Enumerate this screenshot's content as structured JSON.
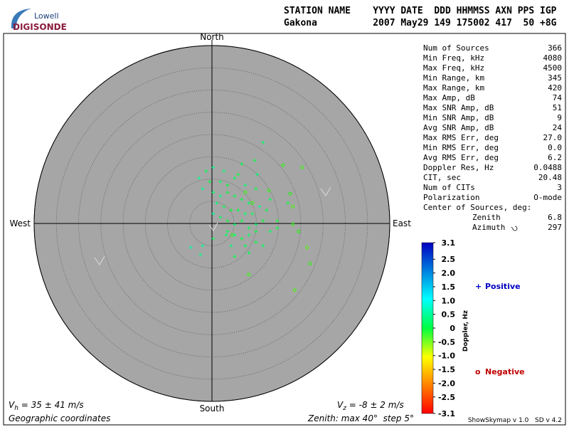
{
  "chart_data": {
    "type": "skymap",
    "logo": {
      "top": "Lowell",
      "bottom": "DIGISONDE"
    },
    "header": {
      "labels": "STATION NAME    YYYY DATE  DDD HHMMSS AXN PPS IGP",
      "values": "Gakona          2007 May29 149 175002 417  50 +8G"
    },
    "directions": {
      "north": "North",
      "south": "South",
      "east": "East",
      "west": "West"
    },
    "rlim": [
      0,
      40
    ],
    "rticks": [
      5,
      10,
      15,
      20,
      25,
      30,
      35,
      40
    ],
    "xlim": [
      -40,
      40
    ],
    "ylim": [
      -40,
      40
    ],
    "stats": [
      [
        "Num of Sources",
        "366"
      ],
      [
        "Min Freq, kHz",
        "4080"
      ],
      [
        "Max Freq, kHz",
        "4500"
      ],
      [
        "Min Range, km",
        "345"
      ],
      [
        "Max Range, km",
        "420"
      ],
      [
        "Max Amp, dB",
        "74"
      ],
      [
        "Max SNR Amp, dB",
        "51"
      ],
      [
        "Min SNR Amp, dB",
        "9"
      ],
      [
        "Avg SNR Amp, dB",
        "24"
      ],
      [
        "Max RMS Err, deg",
        "27.0"
      ],
      [
        "Min RMS Err, deg",
        "0.0"
      ],
      [
        "Avg RMS Err, deg",
        "6.2"
      ],
      [
        "Doppler Res, Hz",
        "0.0488"
      ],
      [
        "CIT, sec",
        "20.48"
      ],
      [
        "Num of CITs",
        "3"
      ],
      [
        "Polarization",
        "O-mode"
      ]
    ],
    "center": {
      "title": "Center of Sources, deg:",
      "zenith_label": "Zenith",
      "zenith": "6.8",
      "azimuth_label": "Azimuth",
      "azimuth": "297"
    },
    "colorbar": {
      "label": "Doppler, Hz",
      "lim": [
        -3.1,
        3.1
      ],
      "ticks": [
        3.1,
        2.5,
        {
          "value": 2,
          "label": "2.0"
        },
        1.5,
        {
          "value": 1,
          "label": "1.0"
        },
        0.5,
        0,
        -0.5,
        {
          "value": -1,
          "label": "-1.0"
        },
        -1.5,
        {
          "value": -2,
          "label": "-2.0"
        },
        -2.5,
        -3.1
      ]
    },
    "series": [
      {
        "name": "Positive",
        "symbol": "+",
        "color": "#0000c0",
        "x": [
          11.5,
          9.6,
          6.7,
          10.2,
          5.9,
          0.3,
          -1.3,
          -2.9,
          -0.5,
          1.9,
          3.5,
          5.1,
          7.5,
          9.9,
          0.3,
          1.9,
          3.5,
          5.1,
          6.7,
          8.3,
          1.1,
          2.7,
          4.3,
          5.9,
          7.5,
          9.1,
          10.7,
          12.3,
          0.3,
          1.9,
          3.5,
          5.1,
          6.7,
          8.3,
          9.9,
          11.5,
          13.1,
          14.7,
          3.5,
          5.1,
          6.7,
          8.3,
          9.9,
          11.5,
          4.3,
          0.3,
          -2.1,
          -4.8,
          -2.6,
          5.1,
          8.3,
          14.7,
          17.1,
          13.1,
          2.7,
          -2.1,
          7.5,
          9.9,
          3.2
        ],
        "y": [
          18.2,
          14.2,
          13.4,
          11.0,
          11.0,
          12.6,
          11.8,
          10.2,
          9.4,
          9.4,
          8.6,
          10.2,
          8.6,
          7.8,
          7.0,
          6.2,
          7.0,
          6.2,
          5.4,
          4.6,
          4.6,
          3.8,
          3.0,
          3.0,
          2.2,
          2.2,
          3.8,
          3.0,
          2.2,
          1.4,
          0.6,
          -0.2,
          0.6,
          -1.0,
          -0.2,
          0.6,
          -1.8,
          -1.0,
          -1.8,
          -2.6,
          -3.4,
          -2.6,
          -4.2,
          -5.0,
          -5.0,
          -3.4,
          -5.0,
          -5.4,
          -7.0,
          -7.4,
          -6.6,
          0.6,
          4.6,
          5.4,
          11.8,
          7.8,
          -5.0,
          -1.8,
          -2.6
        ],
        "doppler": [
          0.6,
          0.4,
          0.5,
          0.7,
          0.3,
          0.8,
          0.5,
          0.9,
          0.4,
          0.6,
          0.3,
          0.5,
          0.7,
          0.4,
          0.6,
          0.8,
          0.3,
          0.5,
          0.4,
          0.6,
          0.7,
          0.5,
          0.3,
          0.4,
          0.6,
          0.5,
          0.8,
          0.4,
          0.9,
          0.5,
          0.3,
          0.6,
          0.4,
          0.5,
          0.7,
          0.3,
          0.6,
          0.4,
          0.5,
          0.8,
          0.3,
          0.6,
          0.4,
          0.5,
          0.7,
          0.6,
          0.9,
          1.0,
          0.8,
          0.4,
          0.5,
          0.3,
          0.4,
          0.5,
          0.7,
          0.9,
          0.5,
          0.4,
          0.6
        ]
      },
      {
        "name": "Negative",
        "symbol": "o",
        "color": "#c00000",
        "x": [
          16.0,
          20.3,
          17.6,
          18.2,
          12.8,
          7.5,
          21.4,
          22.1,
          18.6,
          8.3,
          19.5,
          18.2,
          9.1,
          4.6
        ],
        "y": [
          13.1,
          12.6,
          6.7,
          3.8,
          7.4,
          7.0,
          -5.4,
          -9.0,
          -15.0,
          -11.5,
          -1.8,
          -0.2,
          4.6,
          -2.6
        ],
        "doppler": [
          -0.2,
          -0.3,
          -0.1,
          -0.4,
          -0.2,
          -0.3,
          -0.5,
          -0.2,
          -0.4,
          -0.3,
          -0.1,
          -0.2,
          -0.3,
          -0.2
        ]
      }
    ],
    "footer": {
      "vh_v": "V",
      "vh_sub": "h",
      "vh_text": " = 35 ± 41 m/s",
      "vz_v": "V",
      "vz_sub": "z",
      "vz_text": " = -8 ± 2 m/s",
      "coords": "Geographic coordinates",
      "zenith": "Zenith: max 40°  step 5°",
      "version": "ShowSkymap v 1.0   SD v 4.2"
    }
  }
}
